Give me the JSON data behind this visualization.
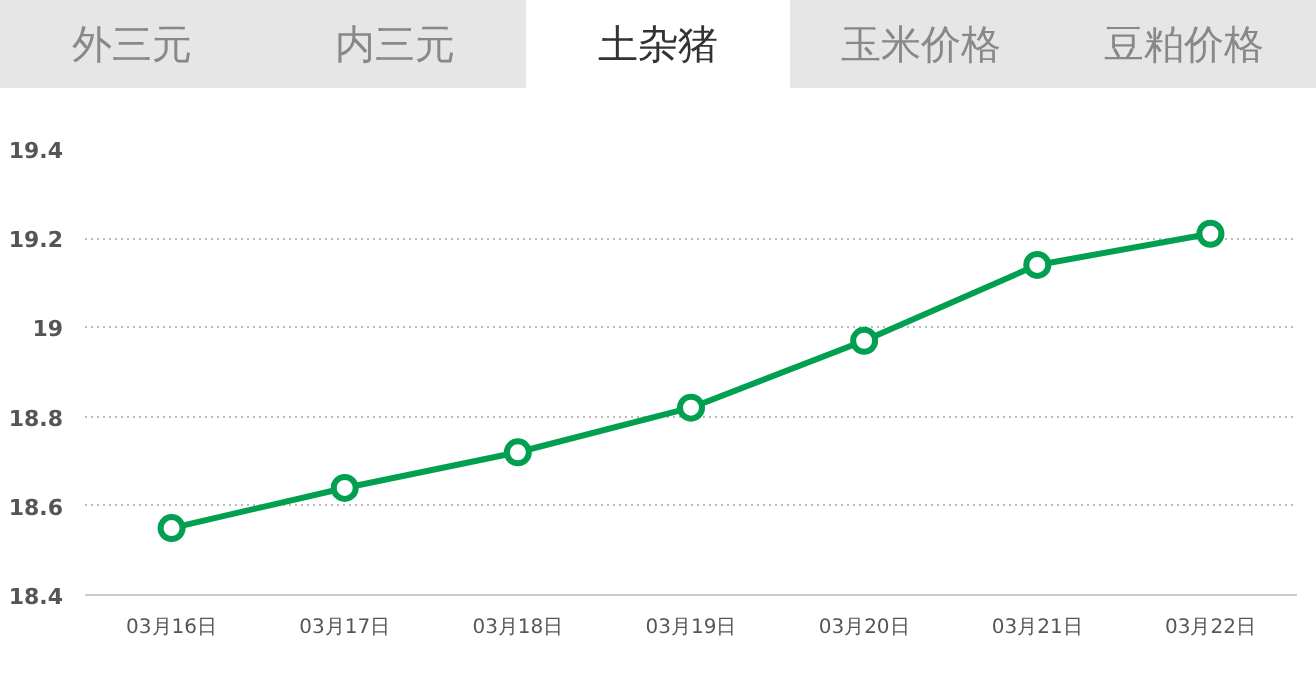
{
  "chart_data": {
    "type": "line",
    "title": "土杂猪",
    "annotations": [
      "外三元",
      "内三元",
      "玉米价格",
      "豆粕价格"
    ],
    "categories": [
      "03月16日",
      "03月17日",
      "03月18日",
      "03月19日",
      "03月20日",
      "03月21日",
      "03月22日"
    ],
    "series": [
      {
        "color": "#00a050",
        "values": [
          18.55,
          18.64,
          18.72,
          18.82,
          18.97,
          19.14,
          19.21
        ]
      }
    ],
    "ylim": [
      18.4,
      19.4
    ],
    "yticks": [
      18.4,
      18.6,
      18.8,
      19,
      19.2,
      19.4
    ],
    "grid": "y",
    "marker": "circle",
    "line_style": "solid"
  }
}
